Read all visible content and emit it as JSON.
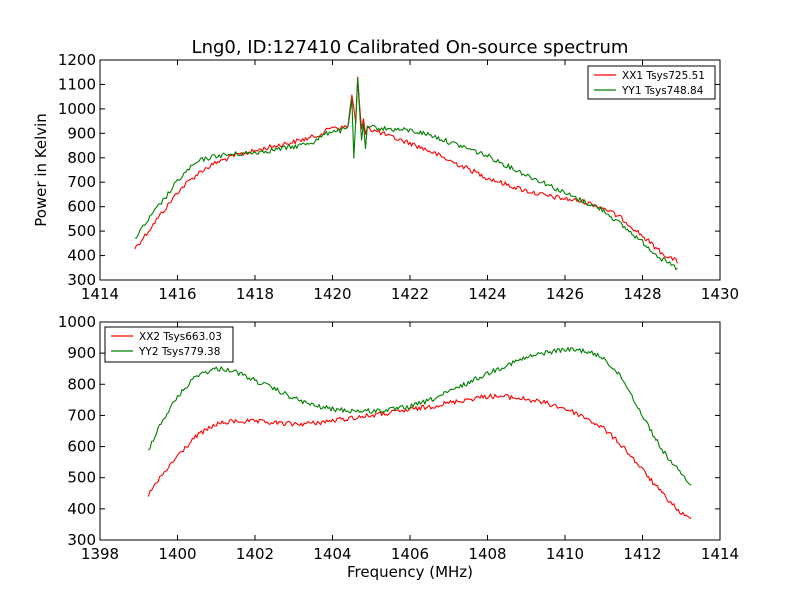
{
  "title": "Lng0, ID:127410 Calibrated On-source spectrum",
  "colors": {
    "red": "#ff0000",
    "green": "#007f00"
  },
  "chart_data": [
    {
      "type": "line",
      "title": "Lng0, ID:127410 Calibrated On-source spectrum",
      "xlabel": "",
      "ylabel": "Power in Kelvin",
      "xlim": [
        1414,
        1430
      ],
      "ylim": [
        300,
        1200
      ],
      "xticks": [
        1414,
        1416,
        1418,
        1420,
        1422,
        1424,
        1426,
        1428,
        1430
      ],
      "yticks": [
        300,
        400,
        500,
        600,
        700,
        800,
        900,
        1000,
        1100,
        1200
      ],
      "legend_position": "top-right",
      "series": [
        {
          "name": "XX1 Tsys725.51",
          "color": "#ff0000",
          "x": [
            1414.9,
            1415.2,
            1415.5,
            1415.8,
            1416.0,
            1416.3,
            1416.6,
            1417.0,
            1417.5,
            1418.0,
            1418.5,
            1419.0,
            1419.5,
            1419.8,
            1420.0,
            1420.2,
            1420.4,
            1420.5,
            1420.55,
            1420.6,
            1420.65,
            1420.7,
            1420.75,
            1420.8,
            1420.85,
            1420.9,
            1421.0,
            1421.2,
            1421.5,
            1422.0,
            1422.5,
            1423.0,
            1423.5,
            1424.0,
            1424.5,
            1425.0,
            1425.5,
            1426.0,
            1426.5,
            1427.0,
            1427.5,
            1428.0,
            1428.5,
            1428.9
          ],
          "y": [
            430,
            490,
            555,
            615,
            660,
            705,
            745,
            780,
            810,
            828,
            848,
            865,
            885,
            905,
            930,
            920,
            930,
            1060,
            1000,
            940,
            1125,
            1010,
            910,
            960,
            905,
            930,
            915,
            905,
            885,
            860,
            828,
            790,
            755,
            718,
            690,
            665,
            645,
            632,
            620,
            595,
            548,
            480,
            410,
            375
          ]
        },
        {
          "name": "YY1 Tsys748.84",
          "color": "#007f00",
          "x": [
            1414.9,
            1415.2,
            1415.5,
            1415.8,
            1416.0,
            1416.3,
            1416.6,
            1417.0,
            1417.5,
            1418.0,
            1418.5,
            1419.0,
            1419.5,
            1419.8,
            1420.0,
            1420.2,
            1420.4,
            1420.5,
            1420.55,
            1420.6,
            1420.65,
            1420.7,
            1420.75,
            1420.8,
            1420.85,
            1420.9,
            1421.0,
            1421.5,
            1422.0,
            1422.5,
            1423.0,
            1423.5,
            1424.0,
            1424.5,
            1425.0,
            1425.5,
            1426.0,
            1426.5,
            1427.0,
            1427.5,
            1428.0,
            1428.5,
            1428.9
          ],
          "y": [
            470,
            535,
            600,
            660,
            705,
            755,
            790,
            808,
            815,
            822,
            833,
            845,
            865,
            895,
            912,
            910,
            920,
            1040,
            800,
            960,
            1125,
            980,
            880,
            930,
            840,
            920,
            925,
            917,
            912,
            895,
            865,
            838,
            808,
            768,
            730,
            695,
            655,
            620,
            585,
            520,
            455,
            385,
            345
          ]
        }
      ]
    },
    {
      "type": "line",
      "xlabel": "Frequency (MHz)",
      "ylabel": "",
      "xlim": [
        1398,
        1414
      ],
      "ylim": [
        300,
        1000
      ],
      "xticks": [
        1398,
        1400,
        1402,
        1404,
        1406,
        1408,
        1410,
        1412,
        1414
      ],
      "yticks": [
        300,
        400,
        500,
        600,
        700,
        800,
        900,
        1000
      ],
      "legend_position": "top-left",
      "series": [
        {
          "name": "XX2 Tsys663.03",
          "color": "#ff0000",
          "x": [
            1399.25,
            1399.5,
            1400.0,
            1400.5,
            1401.0,
            1401.5,
            1402.0,
            1402.5,
            1403.0,
            1403.5,
            1404.0,
            1404.5,
            1405.0,
            1405.5,
            1406.0,
            1406.5,
            1407.0,
            1407.5,
            1408.0,
            1408.5,
            1409.0,
            1409.5,
            1410.0,
            1410.5,
            1411.0,
            1411.5,
            1412.0,
            1412.5,
            1413.0,
            1413.25
          ],
          "y": [
            445,
            490,
            570,
            635,
            672,
            682,
            680,
            676,
            672,
            675,
            683,
            692,
            700,
            708,
            718,
            728,
            740,
            752,
            762,
            760,
            752,
            740,
            722,
            695,
            658,
            600,
            525,
            450,
            385,
            365
          ]
        },
        {
          "name": "YY2 Tsys779.38",
          "color": "#007f00",
          "x": [
            1399.25,
            1399.5,
            1400.0,
            1400.5,
            1401.0,
            1401.3,
            1401.5,
            1402.0,
            1402.5,
            1403.0,
            1403.5,
            1404.0,
            1404.5,
            1405.0,
            1405.5,
            1406.0,
            1406.5,
            1407.0,
            1407.5,
            1408.0,
            1408.5,
            1409.0,
            1409.5,
            1410.0,
            1410.5,
            1411.0,
            1411.5,
            1412.0,
            1412.5,
            1413.0,
            1413.25
          ],
          "y": [
            590,
            660,
            760,
            830,
            850,
            848,
            840,
            812,
            785,
            755,
            732,
            720,
            715,
            714,
            718,
            728,
            748,
            775,
            805,
            835,
            862,
            885,
            902,
            912,
            908,
            885,
            815,
            700,
            590,
            510,
            480
          ]
        }
      ]
    }
  ]
}
